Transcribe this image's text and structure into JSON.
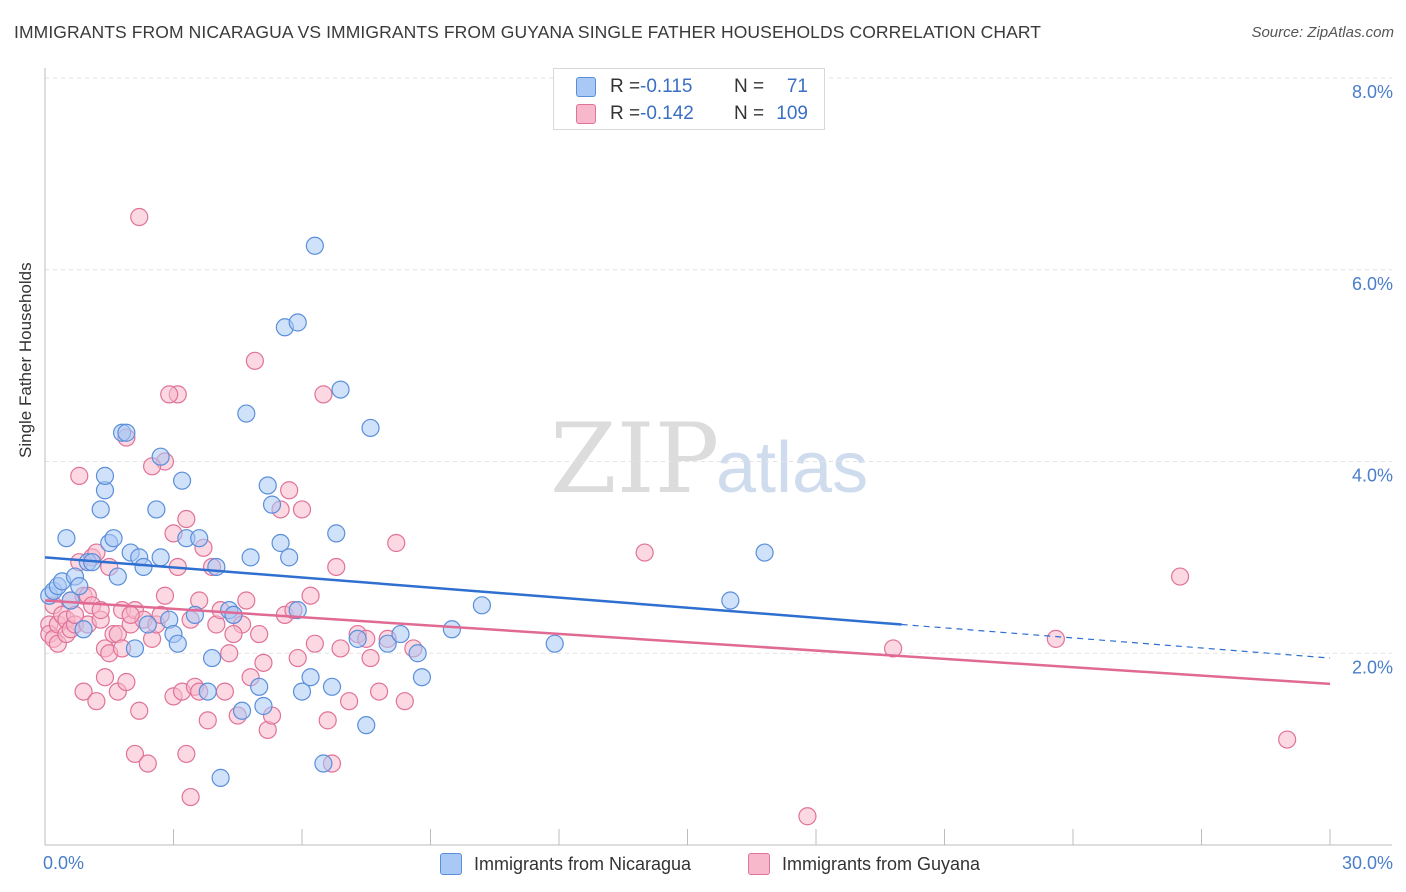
{
  "header": {
    "title": "IMMIGRANTS FROM NICARAGUA VS IMMIGRANTS FROM GUYANA SINGLE FATHER HOUSEHOLDS CORRELATION CHART",
    "source": "Source: ZipAtlas.com"
  },
  "watermark": {
    "zip": "ZIP",
    "atlas": "atlas"
  },
  "legend": {
    "r_label": "R =",
    "n_label": "N =",
    "rows": [
      {
        "r": "-0.115",
        "n": "71",
        "color": "#a9c8f5",
        "border": "#5b8fd9"
      },
      {
        "r": "-0.142",
        "n": "109",
        "color": "#f7b8cb",
        "border": "#e07399"
      }
    ]
  },
  "chart_data": {
    "type": "scatter",
    "title": "IMMIGRANTS FROM NICARAGUA VS IMMIGRANTS FROM GUYANA SINGLE FATHER HOUSEHOLDS CORRELATION CHART",
    "xlabel": "",
    "ylabel": "Single Father Households",
    "xlim": [
      0,
      30
    ],
    "ylim": [
      0,
      8.0
    ],
    "x_tick_labels": [
      "0.0%",
      "30.0%"
    ],
    "y_tick_labels": [
      "2.0%",
      "4.0%",
      "6.0%",
      "8.0%"
    ],
    "y_ticks": [
      2,
      4,
      6,
      8
    ],
    "grid": true,
    "legend_position": "top-center",
    "series": [
      {
        "name": "Immigrants from Nicaragua",
        "color": "#5b8fd9",
        "fill": "#a9c8f5",
        "trend": {
          "x0": 0,
          "y0": 3.0,
          "x1": 20.0,
          "y1": 2.3,
          "dash_to_x": 30,
          "dash_to_y": 1.95
        },
        "points": [
          [
            0.1,
            2.6
          ],
          [
            0.2,
            2.65
          ],
          [
            0.3,
            2.7
          ],
          [
            0.4,
            2.75
          ],
          [
            0.5,
            3.2
          ],
          [
            0.6,
            2.55
          ],
          [
            0.7,
            2.8
          ],
          [
            0.8,
            2.7
          ],
          [
            0.9,
            2.25
          ],
          [
            1.0,
            2.95
          ],
          [
            1.1,
            2.95
          ],
          [
            1.3,
            3.5
          ],
          [
            1.4,
            3.7
          ],
          [
            1.4,
            3.85
          ],
          [
            1.5,
            3.15
          ],
          [
            1.6,
            3.2
          ],
          [
            1.7,
            2.8
          ],
          [
            1.8,
            4.3
          ],
          [
            1.9,
            4.3
          ],
          [
            2.0,
            3.05
          ],
          [
            2.1,
            2.05
          ],
          [
            2.2,
            3.0
          ],
          [
            2.3,
            2.9
          ],
          [
            2.4,
            2.3
          ],
          [
            2.6,
            3.5
          ],
          [
            2.7,
            4.05
          ],
          [
            2.7,
            3.0
          ],
          [
            2.9,
            2.35
          ],
          [
            3.0,
            2.2
          ],
          [
            3.1,
            2.1
          ],
          [
            3.2,
            3.8
          ],
          [
            3.3,
            3.2
          ],
          [
            3.5,
            2.4
          ],
          [
            3.6,
            3.2
          ],
          [
            3.8,
            1.6
          ],
          [
            3.9,
            1.95
          ],
          [
            4.0,
            2.9
          ],
          [
            4.1,
            0.7
          ],
          [
            4.3,
            2.45
          ],
          [
            4.4,
            2.4
          ],
          [
            4.6,
            1.4
          ],
          [
            4.7,
            4.5
          ],
          [
            4.8,
            3.0
          ],
          [
            5.0,
            1.65
          ],
          [
            5.1,
            1.45
          ],
          [
            5.2,
            3.75
          ],
          [
            5.5,
            3.15
          ],
          [
            5.6,
            5.4
          ],
          [
            5.7,
            3.0
          ],
          [
            5.9,
            5.45
          ],
          [
            5.9,
            2.45
          ],
          [
            6.0,
            1.6
          ],
          [
            6.2,
            1.75
          ],
          [
            6.3,
            6.25
          ],
          [
            6.5,
            0.85
          ],
          [
            6.7,
            1.65
          ],
          [
            6.8,
            3.25
          ],
          [
            6.9,
            4.75
          ],
          [
            7.3,
            2.15
          ],
          [
            7.5,
            1.25
          ],
          [
            7.6,
            4.35
          ],
          [
            8.0,
            2.1
          ],
          [
            8.3,
            2.2
          ],
          [
            8.7,
            2.0
          ],
          [
            8.8,
            1.75
          ],
          [
            9.5,
            2.25
          ],
          [
            10.2,
            2.5
          ],
          [
            11.9,
            2.1
          ],
          [
            16.0,
            2.55
          ],
          [
            16.8,
            3.05
          ],
          [
            5.3,
            3.55
          ]
        ]
      },
      {
        "name": "Immigrants from Guyana",
        "color": "#e07399",
        "fill": "#f7b8cb",
        "trend": {
          "x0": 0,
          "y0": 2.55,
          "x1": 30.0,
          "y1": 1.68
        },
        "points": [
          [
            0.1,
            2.3
          ],
          [
            0.1,
            2.2
          ],
          [
            0.2,
            2.5
          ],
          [
            0.2,
            2.15
          ],
          [
            0.3,
            2.3
          ],
          [
            0.3,
            2.1
          ],
          [
            0.4,
            2.4
          ],
          [
            0.5,
            2.2
          ],
          [
            0.5,
            2.35
          ],
          [
            0.6,
            2.25
          ],
          [
            0.6,
            2.55
          ],
          [
            0.7,
            2.3
          ],
          [
            0.8,
            2.95
          ],
          [
            0.8,
            3.85
          ],
          [
            0.9,
            2.6
          ],
          [
            0.9,
            1.6
          ],
          [
            1.0,
            2.3
          ],
          [
            1.0,
            2.6
          ],
          [
            1.1,
            2.5
          ],
          [
            1.1,
            3.0
          ],
          [
            1.2,
            1.5
          ],
          [
            1.2,
            3.05
          ],
          [
            1.3,
            2.35
          ],
          [
            1.4,
            1.75
          ],
          [
            1.4,
            2.05
          ],
          [
            1.5,
            2.9
          ],
          [
            1.5,
            2.0
          ],
          [
            1.6,
            2.2
          ],
          [
            1.7,
            1.6
          ],
          [
            1.7,
            2.2
          ],
          [
            1.8,
            2.05
          ],
          [
            1.8,
            2.45
          ],
          [
            1.9,
            1.7
          ],
          [
            1.9,
            4.25
          ],
          [
            2.0,
            2.3
          ],
          [
            2.1,
            2.45
          ],
          [
            2.1,
            0.95
          ],
          [
            2.2,
            1.4
          ],
          [
            2.2,
            6.55
          ],
          [
            2.3,
            2.35
          ],
          [
            2.4,
            0.85
          ],
          [
            2.5,
            2.15
          ],
          [
            2.6,
            2.3
          ],
          [
            2.7,
            2.4
          ],
          [
            2.8,
            4.0
          ],
          [
            2.8,
            2.6
          ],
          [
            3.0,
            1.55
          ],
          [
            3.0,
            3.25
          ],
          [
            3.1,
            2.9
          ],
          [
            3.1,
            4.7
          ],
          [
            3.2,
            1.6
          ],
          [
            3.3,
            0.95
          ],
          [
            3.3,
            3.4
          ],
          [
            3.4,
            2.35
          ],
          [
            3.5,
            1.65
          ],
          [
            3.6,
            2.55
          ],
          [
            3.7,
            3.1
          ],
          [
            3.8,
            1.3
          ],
          [
            3.9,
            2.9
          ],
          [
            4.0,
            2.3
          ],
          [
            4.1,
            2.45
          ],
          [
            4.2,
            1.6
          ],
          [
            4.3,
            2.0
          ],
          [
            4.4,
            2.4
          ],
          [
            4.5,
            1.35
          ],
          [
            4.6,
            2.3
          ],
          [
            4.7,
            2.55
          ],
          [
            4.8,
            1.75
          ],
          [
            4.9,
            5.05
          ],
          [
            5.0,
            2.2
          ],
          [
            5.1,
            1.9
          ],
          [
            5.2,
            1.2
          ],
          [
            5.3,
            1.35
          ],
          [
            5.5,
            3.5
          ],
          [
            5.6,
            2.4
          ],
          [
            5.7,
            3.7
          ],
          [
            5.9,
            1.95
          ],
          [
            6.0,
            3.5
          ],
          [
            6.3,
            2.1
          ],
          [
            6.5,
            4.7
          ],
          [
            6.6,
            1.3
          ],
          [
            6.7,
            0.85
          ],
          [
            6.8,
            2.9
          ],
          [
            6.9,
            2.05
          ],
          [
            7.1,
            1.5
          ],
          [
            7.3,
            2.2
          ],
          [
            7.5,
            2.15
          ],
          [
            7.6,
            1.95
          ],
          [
            7.8,
            1.6
          ],
          [
            8.0,
            2.15
          ],
          [
            8.2,
            3.15
          ],
          [
            8.4,
            1.5
          ],
          [
            8.6,
            2.05
          ],
          [
            2.5,
            3.95
          ],
          [
            2.9,
            4.7
          ],
          [
            3.4,
            0.5
          ],
          [
            3.6,
            1.6
          ],
          [
            4.4,
            2.2
          ],
          [
            5.8,
            2.45
          ],
          [
            6.2,
            2.6
          ],
          [
            14.0,
            3.05
          ],
          [
            17.8,
            0.3
          ],
          [
            19.8,
            2.05
          ],
          [
            23.6,
            2.15
          ],
          [
            26.5,
            2.8
          ],
          [
            29.0,
            1.1
          ],
          [
            0.7,
            2.4
          ],
          [
            1.3,
            2.45
          ],
          [
            2.0,
            2.4
          ]
        ]
      }
    ]
  }
}
